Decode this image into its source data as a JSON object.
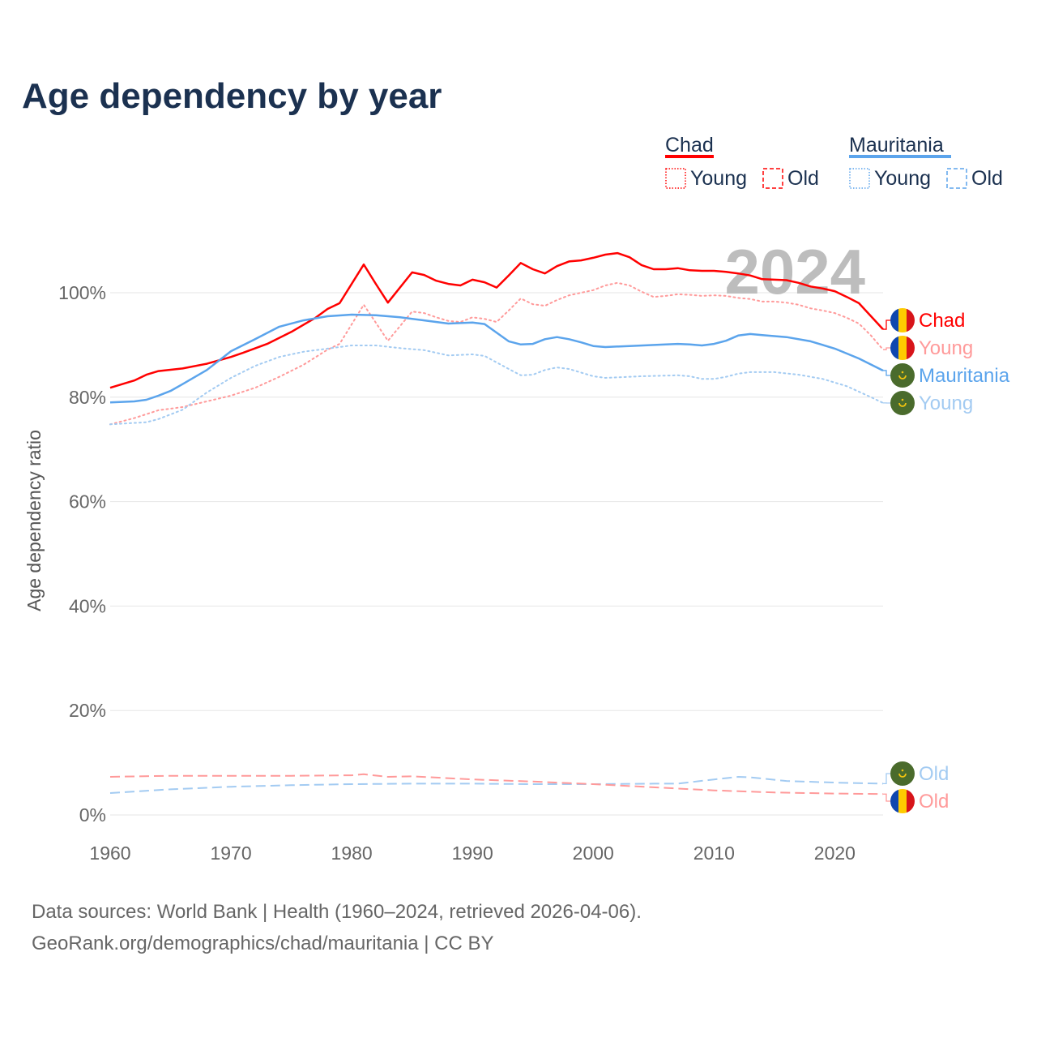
{
  "colors": {
    "chad": "#ff0000",
    "chad_light": "#ff9a9a",
    "mauritania": "#5ba4ec",
    "mauritania_light": "#a3cbf2",
    "title": "#1b3150",
    "axis_text": "#666666",
    "grid": "#e6e6e6",
    "year_watermark": "#bdbdbd"
  },
  "chart_data": {
    "type": "line",
    "title": "Age dependency by year",
    "ylabel": "Age dependency ratio",
    "xlabel": "",
    "xlim": [
      1960,
      2024
    ],
    "ylim": [
      0,
      110
    ],
    "x_ticks": [
      1960,
      1970,
      1980,
      1990,
      2000,
      2010,
      2020
    ],
    "x_tick_labels": [
      "1960",
      "1970",
      "1980",
      "1990",
      "2000",
      "2010",
      "2020"
    ],
    "y_ticks": [
      0,
      20,
      40,
      60,
      80,
      100
    ],
    "y_tick_labels": [
      "0%",
      "20%",
      "40%",
      "60%",
      "80%",
      "100%"
    ],
    "grid": true,
    "year_watermark": "2024",
    "legend": {
      "placement": "top-right",
      "groups": [
        {
          "country": "Chad",
          "items": [
            "Young",
            "Old"
          ]
        },
        {
          "country": "Mauritania",
          "items": [
            "Young",
            "Old"
          ]
        }
      ]
    },
    "series": [
      {
        "name": "Chad",
        "end_label": "Chad",
        "color": "#ff0000",
        "style": "solid",
        "flag": "chad",
        "points": [
          [
            1960,
            81.8
          ],
          [
            1962,
            83.2
          ],
          [
            1963,
            84.3
          ],
          [
            1964,
            85
          ],
          [
            1966,
            85.5
          ],
          [
            1968,
            86.4
          ],
          [
            1970,
            87.7
          ],
          [
            1971,
            88.5
          ],
          [
            1973,
            90.2
          ],
          [
            1975,
            92.5
          ],
          [
            1977,
            95.2
          ],
          [
            1978,
            96.9
          ],
          [
            1979,
            98
          ],
          [
            1981,
            105.4
          ],
          [
            1982,
            101.7
          ],
          [
            1983,
            98.1
          ],
          [
            1985,
            103.9
          ],
          [
            1986,
            103.4
          ],
          [
            1987,
            102.3
          ],
          [
            1988,
            101.7
          ],
          [
            1989,
            101.4
          ],
          [
            1990,
            102.5
          ],
          [
            1991,
            102
          ],
          [
            1992,
            101
          ],
          [
            1993,
            103.3
          ],
          [
            1994,
            105.7
          ],
          [
            1995,
            104.5
          ],
          [
            1996,
            103.7
          ],
          [
            1997,
            105.1
          ],
          [
            1998,
            106
          ],
          [
            1999,
            106.2
          ],
          [
            2000,
            106.7
          ],
          [
            2001,
            107.3
          ],
          [
            2002,
            107.6
          ],
          [
            2003,
            106.8
          ],
          [
            2004,
            105.3
          ],
          [
            2005,
            104.5
          ],
          [
            2006,
            104.5
          ],
          [
            2007,
            104.7
          ],
          [
            2008,
            104.3
          ],
          [
            2009,
            104.2
          ],
          [
            2010,
            104.2
          ],
          [
            2011,
            104
          ],
          [
            2012,
            103.7
          ],
          [
            2013,
            103.3
          ],
          [
            2014,
            102.6
          ],
          [
            2015,
            102.5
          ],
          [
            2016,
            102.4
          ],
          [
            2017,
            101.9
          ],
          [
            2018,
            101.2
          ],
          [
            2019,
            100.8
          ],
          [
            2020,
            100.3
          ],
          [
            2021,
            99.2
          ],
          [
            2022,
            98
          ],
          [
            2023,
            95.5
          ],
          [
            2024,
            93
          ]
        ]
      },
      {
        "name": "Chad Young",
        "end_label": "Young",
        "color": "#ff9a9a",
        "style": "dotted",
        "flag": "chad",
        "points": [
          [
            1960,
            74.8
          ],
          [
            1962,
            76
          ],
          [
            1964,
            77.5
          ],
          [
            1966,
            78.1
          ],
          [
            1968,
            79.2
          ],
          [
            1970,
            80.3
          ],
          [
            1972,
            81.8
          ],
          [
            1974,
            83.9
          ],
          [
            1976,
            86.2
          ],
          [
            1978,
            89.1
          ],
          [
            1979,
            90.2
          ],
          [
            1981,
            97.7
          ],
          [
            1983,
            90.8
          ],
          [
            1985,
            96.4
          ],
          [
            1986,
            96.1
          ],
          [
            1987,
            95.3
          ],
          [
            1988,
            94.6
          ],
          [
            1989,
            94.4
          ],
          [
            1990,
            95.3
          ],
          [
            1991,
            95
          ],
          [
            1992,
            94.4
          ],
          [
            1993,
            96.6
          ],
          [
            1994,
            98.9
          ],
          [
            1995,
            97.8
          ],
          [
            1996,
            97.5
          ],
          [
            1997,
            98.6
          ],
          [
            1998,
            99.5
          ],
          [
            1999,
            100
          ],
          [
            2000,
            100.5
          ],
          [
            2001,
            101.4
          ],
          [
            2002,
            101.9
          ],
          [
            2003,
            101.4
          ],
          [
            2004,
            100.2
          ],
          [
            2005,
            99.2
          ],
          [
            2006,
            99.4
          ],
          [
            2007,
            99.7
          ],
          [
            2008,
            99.6
          ],
          [
            2009,
            99.4
          ],
          [
            2010,
            99.5
          ],
          [
            2011,
            99.4
          ],
          [
            2012,
            99
          ],
          [
            2013,
            98.8
          ],
          [
            2014,
            98.3
          ],
          [
            2015,
            98.3
          ],
          [
            2016,
            98.1
          ],
          [
            2017,
            97.7
          ],
          [
            2018,
            97
          ],
          [
            2019,
            96.6
          ],
          [
            2020,
            96.1
          ],
          [
            2021,
            95.2
          ],
          [
            2022,
            94.1
          ],
          [
            2023,
            91.8
          ],
          [
            2024,
            89.1
          ]
        ]
      },
      {
        "name": "Mauritania",
        "end_label": "Mauritania",
        "color": "#5ba4ec",
        "style": "solid",
        "flag": "mauritania",
        "points": [
          [
            1960,
            79
          ],
          [
            1962,
            79.2
          ],
          [
            1963,
            79.5
          ],
          [
            1964,
            80.3
          ],
          [
            1965,
            81.2
          ],
          [
            1966,
            82.5
          ],
          [
            1968,
            85.2
          ],
          [
            1970,
            88.8
          ],
          [
            1972,
            91.1
          ],
          [
            1974,
            93.5
          ],
          [
            1976,
            94.7
          ],
          [
            1978,
            95.5
          ],
          [
            1980,
            95.8
          ],
          [
            1982,
            95.7
          ],
          [
            1984,
            95.3
          ],
          [
            1986,
            94.7
          ],
          [
            1988,
            94.1
          ],
          [
            1990,
            94.3
          ],
          [
            1991,
            94
          ],
          [
            1993,
            90.7
          ],
          [
            1994,
            90.1
          ],
          [
            1995,
            90.2
          ],
          [
            1996,
            91.1
          ],
          [
            1997,
            91.5
          ],
          [
            1998,
            91.1
          ],
          [
            1999,
            90.5
          ],
          [
            2000,
            89.8
          ],
          [
            2001,
            89.6
          ],
          [
            2003,
            89.8
          ],
          [
            2006,
            90.1
          ],
          [
            2007,
            90.2
          ],
          [
            2008,
            90.1
          ],
          [
            2009,
            89.9
          ],
          [
            2010,
            90.2
          ],
          [
            2011,
            90.8
          ],
          [
            2012,
            91.8
          ],
          [
            2013,
            92.1
          ],
          [
            2014,
            91.9
          ],
          [
            2016,
            91.5
          ],
          [
            2018,
            90.7
          ],
          [
            2020,
            89.3
          ],
          [
            2022,
            87.4
          ],
          [
            2024,
            85.1
          ]
        ]
      },
      {
        "name": "Mauritania Young",
        "end_label": "Young",
        "color": "#a3cbf2",
        "style": "dotted",
        "flag": "mauritania",
        "points": [
          [
            1960,
            74.8
          ],
          [
            1963,
            75.2
          ],
          [
            1964,
            75.8
          ],
          [
            1966,
            77.6
          ],
          [
            1968,
            80.9
          ],
          [
            1970,
            83.7
          ],
          [
            1972,
            86
          ],
          [
            1974,
            87.7
          ],
          [
            1976,
            88.7
          ],
          [
            1978,
            89.3
          ],
          [
            1980,
            89.9
          ],
          [
            1982,
            89.9
          ],
          [
            1984,
            89.4
          ],
          [
            1986,
            89
          ],
          [
            1988,
            88
          ],
          [
            1990,
            88.2
          ],
          [
            1991,
            87.9
          ],
          [
            1993,
            85.4
          ],
          [
            1994,
            84.2
          ],
          [
            1995,
            84.3
          ],
          [
            1996,
            85.2
          ],
          [
            1997,
            85.7
          ],
          [
            1998,
            85.4
          ],
          [
            2000,
            84
          ],
          [
            2001,
            83.7
          ],
          [
            2004,
            84
          ],
          [
            2007,
            84.2
          ],
          [
            2008,
            84
          ],
          [
            2009,
            83.5
          ],
          [
            2010,
            83.5
          ],
          [
            2011,
            83.9
          ],
          [
            2012,
            84.5
          ],
          [
            2013,
            84.8
          ],
          [
            2015,
            84.8
          ],
          [
            2017,
            84.3
          ],
          [
            2019,
            83.5
          ],
          [
            2021,
            82.1
          ],
          [
            2023,
            80
          ],
          [
            2024,
            78.9
          ]
        ]
      },
      {
        "name": "Mauritania Old",
        "end_label": "Old",
        "color": "#a3cbf2",
        "style": "dashed",
        "flag": "mauritania",
        "points": [
          [
            1960,
            4.2
          ],
          [
            1965,
            4.9
          ],
          [
            1970,
            5.4
          ],
          [
            1975,
            5.7
          ],
          [
            1980,
            5.9
          ],
          [
            1985,
            6
          ],
          [
            1990,
            6
          ],
          [
            1995,
            5.9
          ],
          [
            2000,
            5.9
          ],
          [
            2005,
            6
          ],
          [
            2007,
            6
          ],
          [
            2010,
            6.8
          ],
          [
            2012,
            7.3
          ],
          [
            2013,
            7.2
          ],
          [
            2016,
            6.5
          ],
          [
            2020,
            6.2
          ],
          [
            2024,
            6
          ]
        ]
      },
      {
        "name": "Chad Old",
        "end_label": "Old",
        "color": "#ff9a9a",
        "style": "dashed",
        "flag": "chad",
        "points": [
          [
            1960,
            7.3
          ],
          [
            1965,
            7.5
          ],
          [
            1970,
            7.5
          ],
          [
            1975,
            7.5
          ],
          [
            1980,
            7.6
          ],
          [
            1981,
            7.8
          ],
          [
            1983,
            7.3
          ],
          [
            1985,
            7.4
          ],
          [
            1990,
            6.8
          ],
          [
            1995,
            6.4
          ],
          [
            2000,
            5.9
          ],
          [
            2005,
            5.3
          ],
          [
            2010,
            4.7
          ],
          [
            2015,
            4.3
          ],
          [
            2020,
            4.1
          ],
          [
            2024,
            4
          ]
        ]
      }
    ]
  },
  "footer": {
    "line1": "Data sources: World Bank | Health (1960–2024, retrieved 2026-04-06).",
    "line2": "GeoRank.org/demographics/chad/mauritania | CC BY"
  }
}
